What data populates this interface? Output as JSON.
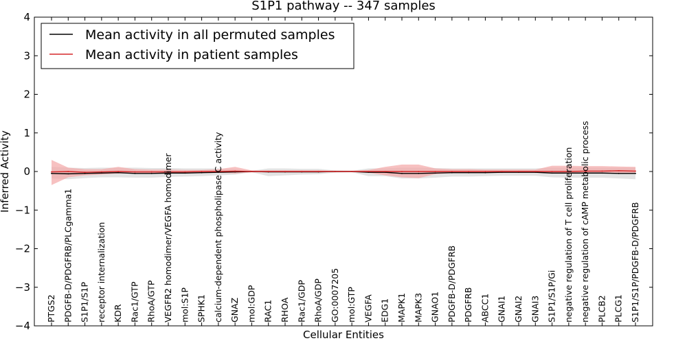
{
  "chart_data": {
    "type": "line",
    "title": "S1P1 pathway -- 347 samples",
    "xlabel": "Cellular Entities",
    "ylabel": "Inferred Activity",
    "ylim": [
      -4,
      4
    ],
    "yticks": [
      -4,
      -3,
      -2,
      -1,
      0,
      1,
      2,
      3,
      4
    ],
    "ytick_labels": [
      "−4",
      "−3",
      "−2",
      "−1",
      "0",
      "1",
      "2",
      "3",
      "4"
    ],
    "grid": false,
    "legend_position": "top-left",
    "categories": [
      "PTGS2",
      "PDGFB-D/PDGFRB/PLCgamma1",
      "S1P1/S1P",
      "receptor internalization",
      "KDR",
      "Rac1/GTP",
      "RhoA/GTP",
      "VEGFR2 homodimer/VEGFA homodimer",
      "mol:S1P",
      "SPHK1",
      "calcium-dependent phospholipase C activity",
      "GNAZ",
      "mol:GDP",
      "RAC1",
      "RHOA",
      "Rac1/GDP",
      "RhoA/GDP",
      "GO:0007205",
      "mol:GTP",
      "VEGFA",
      "EDG1",
      "MAPK1",
      "MAPK3",
      "GNAO1",
      "PDGFB-D/PDGFRB",
      "PDGFRB",
      "ABCC1",
      "GNAI1",
      "GNAI2",
      "GNAI3",
      "S1P1/S1P/Gi",
      "negative regulation of T cell proliferation",
      "negative regulation of cAMP metabolic process",
      "PLCB2",
      "PLCG1",
      "S1P1/S1P/PDGFB-D/PDGFRB"
    ],
    "series": [
      {
        "name": "Mean activity in all permuted samples",
        "color": "#000000",
        "values": [
          -0.05,
          -0.06,
          -0.05,
          -0.04,
          -0.03,
          -0.05,
          -0.05,
          -0.04,
          -0.04,
          -0.03,
          -0.02,
          -0.01,
          0.0,
          -0.01,
          -0.01,
          -0.01,
          -0.01,
          0.0,
          0.0,
          -0.02,
          -0.02,
          -0.05,
          -0.05,
          -0.04,
          -0.03,
          -0.03,
          -0.03,
          -0.02,
          -0.02,
          -0.02,
          -0.04,
          -0.04,
          -0.04,
          -0.04,
          -0.05,
          -0.05
        ],
        "band_lower": [
          -0.18,
          -0.2,
          -0.17,
          -0.15,
          -0.15,
          -0.16,
          -0.16,
          -0.14,
          -0.13,
          -0.12,
          -0.1,
          -0.08,
          -0.02,
          -0.12,
          -0.1,
          -0.08,
          -0.07,
          -0.03,
          -0.02,
          -0.12,
          -0.12,
          -0.18,
          -0.18,
          -0.16,
          -0.13,
          -0.13,
          -0.12,
          -0.11,
          -0.11,
          -0.11,
          -0.15,
          -0.16,
          -0.16,
          -0.16,
          -0.18,
          -0.2
        ],
        "band_upper": [
          0.12,
          0.1,
          0.09,
          0.1,
          0.1,
          0.1,
          0.09,
          0.09,
          0.08,
          0.08,
          0.08,
          0.06,
          0.02,
          0.08,
          0.08,
          0.07,
          0.07,
          0.03,
          0.02,
          0.08,
          0.08,
          0.1,
          0.1,
          0.09,
          0.08,
          0.08,
          0.08,
          0.08,
          0.08,
          0.08,
          0.1,
          0.1,
          0.1,
          0.1,
          0.1,
          0.1
        ],
        "band_color": "#d9d9d9"
      },
      {
        "name": "Mean activity in patient samples",
        "color": "#d62728",
        "values": [
          -0.01,
          0.0,
          -0.02,
          -0.01,
          0.0,
          -0.01,
          -0.01,
          -0.01,
          -0.01,
          0.0,
          0.0,
          0.01,
          0.0,
          0.0,
          0.0,
          0.0,
          0.0,
          0.0,
          0.0,
          0.0,
          0.0,
          0.0,
          0.0,
          0.0,
          0.0,
          0.0,
          0.0,
          0.0,
          0.0,
          0.0,
          0.0,
          0.0,
          0.01,
          0.01,
          0.02,
          0.01
        ],
        "band_lower": [
          -0.35,
          -0.15,
          -0.1,
          -0.08,
          -0.05,
          -0.05,
          -0.05,
          -0.04,
          -0.03,
          -0.02,
          -0.03,
          -0.05,
          -0.02,
          -0.02,
          -0.02,
          -0.02,
          -0.02,
          -0.01,
          -0.01,
          -0.03,
          -0.1,
          -0.15,
          -0.17,
          -0.07,
          -0.04,
          -0.04,
          -0.03,
          -0.03,
          -0.02,
          -0.03,
          -0.05,
          -0.05,
          -0.05,
          -0.05,
          -0.05,
          -0.06
        ],
        "band_upper": [
          0.3,
          0.1,
          0.06,
          0.06,
          0.12,
          0.06,
          0.05,
          0.05,
          0.04,
          0.04,
          0.06,
          0.12,
          0.03,
          0.03,
          0.03,
          0.03,
          0.03,
          0.02,
          0.02,
          0.04,
          0.12,
          0.18,
          0.18,
          0.08,
          0.06,
          0.06,
          0.05,
          0.05,
          0.05,
          0.05,
          0.15,
          0.15,
          0.14,
          0.14,
          0.13,
          0.12
        ],
        "band_color": "#f4a6a6"
      }
    ]
  }
}
